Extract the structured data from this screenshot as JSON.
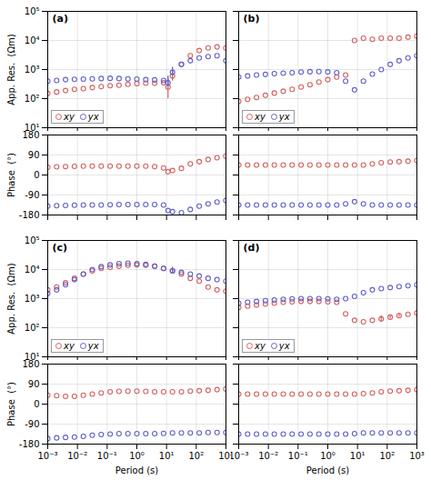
{
  "chart_data": [
    {
      "type": "scatter",
      "title": "(a)",
      "ylabel": "App. Res.  (Ωm)",
      "log": true,
      "grid": true,
      "legend": "lower left",
      "tick_labels": "y",
      "xlim": [
        0.001,
        1000
      ],
      "ylim": [
        10,
        100000
      ],
      "xticks": [
        0.001,
        0.01,
        0.1,
        1,
        10,
        100,
        1000
      ],
      "yticks": [
        {
          "value": 10,
          "label": "10¹"
        },
        {
          "value": 100,
          "label": "10²"
        },
        {
          "value": 1000,
          "label": "10³"
        },
        {
          "value": 10000,
          "label": "10⁴"
        },
        {
          "value": 100000,
          "label": "10⁵"
        }
      ],
      "x": [
        0.001,
        0.0019952623149688794,
        0.003981071705534973,
        0.007943282347242814,
        0.015848931924611134,
        0.03162277660168379,
        0.06309573444801933,
        0.12589254117941673,
        0.251188643150958,
        0.501187233627272,
        1,
        1.9952623149688795,
        3.9810717055349722,
        7.943282347242814,
        11.220184543019634,
        15.848931924611133,
        31.622776601683793,
        63.09573444801933,
        125.89254117941675,
        251.18864315095797,
        501.18723362727224,
        1000
      ],
      "series": [
        {
          "name": "xy",
          "color": "#d46060",
          "marker": "circle",
          "line_style": "none",
          "values": [
            150,
            170,
            190,
            210,
            220,
            240,
            260,
            280,
            290,
            310,
            330,
            340,
            340,
            350,
            250,
            600,
            1500,
            3000,
            4500,
            5500,
            6000,
            5500
          ],
          "error_bars": {
            "x": [
              11.220184543019634,
              15.848931924611133
            ],
            "lo": [
              100,
              400
            ],
            "hi": [
              500,
              900
            ]
          }
        },
        {
          "name": "yx",
          "color": "#6060cc",
          "marker": "circle",
          "line_style": "none",
          "values": [
            400,
            420,
            450,
            460,
            470,
            480,
            490,
            500,
            490,
            480,
            470,
            450,
            440,
            420,
            350,
            800,
            1500,
            2000,
            2500,
            2800,
            3000,
            2000
          ],
          "error_bars": {
            "x": [
              11.220184543019634,
              15.848931924611133
            ],
            "lo": [
              250,
              600
            ],
            "hi": [
              600,
              1200
            ]
          }
        }
      ]
    },
    {
      "type": "scatter",
      "ylabel": "Phase  (°)",
      "log": "x",
      "grid": true,
      "tick_labels": "y",
      "xlim": [
        0.001,
        1000
      ],
      "ylim": [
        -180,
        180
      ],
      "xticks": [
        0.001,
        0.01,
        0.1,
        1,
        10,
        100,
        1000
      ],
      "yticks": [
        -180,
        -90,
        0,
        90,
        180
      ],
      "x": [
        0.001,
        0.0019952623149688794,
        0.003981071705534973,
        0.007943282347242814,
        0.015848931924611134,
        0.03162277660168379,
        0.06309573444801933,
        0.12589254117941673,
        0.251188643150958,
        0.501187233627272,
        1,
        1.9952623149688795,
        3.9810717055349722,
        7.943282347242814,
        11.220184543019634,
        15.848931924611133,
        31.622776601683793,
        63.09573444801933,
        125.89254117941675,
        251.18864315095797,
        501.18723362727224,
        1000
      ],
      "series": [
        {
          "color": "#d46060",
          "marker": "circle",
          "line_style": "none",
          "values": [
            35,
            37,
            38,
            39,
            40,
            40,
            40,
            40,
            40,
            40,
            40,
            40,
            38,
            32,
            15,
            20,
            30,
            50,
            60,
            70,
            78,
            85
          ]
        },
        {
          "color": "#6060cc",
          "marker": "circle",
          "line_style": "none",
          "values": [
            -140,
            -138,
            -137,
            -136,
            -135,
            -135,
            -135,
            -134,
            -133,
            -133,
            -133,
            -133,
            -133,
            -135,
            -160,
            -165,
            -170,
            -155,
            -140,
            -130,
            -122,
            -115
          ]
        }
      ]
    },
    {
      "type": "scatter",
      "title": "(b)",
      "log": true,
      "grid": true,
      "legend": "lower left",
      "tick_labels": false,
      "xlim": [
        0.001,
        1000
      ],
      "ylim": [
        10,
        100000
      ],
      "xticks": [
        0.001,
        0.01,
        0.1,
        1,
        10,
        100,
        1000
      ],
      "yticks": [
        10,
        100,
        1000,
        10000,
        100000
      ],
      "x": [
        0.001,
        0.0019952623149688794,
        0.003981071705534973,
        0.007943282347242814,
        0.015848931924611134,
        0.03162277660168379,
        0.06309573444801933,
        0.12589254117941673,
        0.251188643150958,
        0.501187233627272,
        1,
        1.9952623149688795,
        3.9810717055349722,
        7.943282347242814,
        15.848931924611133,
        31.622776601683793,
        63.09573444801933,
        125.89254117941675,
        251.18864315095797,
        501.18723362727224,
        1000
      ],
      "series": [
        {
          "name": "xy",
          "color": "#d46060",
          "marker": "circle",
          "line_style": "none",
          "values": [
            80,
            95,
            110,
            130,
            155,
            180,
            210,
            250,
            300,
            370,
            450,
            550,
            650,
            10000,
            12000,
            11000,
            12000,
            12000,
            12000,
            13000,
            14000
          ]
        },
        {
          "name": "yx",
          "color": "#6060cc",
          "marker": "circle",
          "line_style": "none",
          "values": [
            550,
            600,
            650,
            680,
            720,
            750,
            780,
            820,
            840,
            850,
            830,
            780,
            400,
            200,
            400,
            700,
            1000,
            1500,
            2000,
            2500,
            3000
          ]
        }
      ]
    },
    {
      "type": "scatter",
      "log": "x",
      "grid": true,
      "tick_labels": false,
      "xlim": [
        0.001,
        1000
      ],
      "ylim": [
        -180,
        180
      ],
      "xticks": [
        0.001,
        0.01,
        0.1,
        1,
        10,
        100,
        1000
      ],
      "yticks": [
        -180,
        -90,
        0,
        90,
        180
      ],
      "x": [
        0.001,
        0.0019952623149688794,
        0.003981071705534973,
        0.007943282347242814,
        0.015848931924611134,
        0.03162277660168379,
        0.06309573444801933,
        0.12589254117941673,
        0.251188643150958,
        0.501187233627272,
        1,
        1.9952623149688795,
        3.9810717055349722,
        7.943282347242814,
        15.848931924611133,
        31.622776601683793,
        63.09573444801933,
        125.89254117941675,
        251.18864315095797,
        501.18723362727224,
        1000
      ],
      "series": [
        {
          "color": "#d46060",
          "marker": "circle",
          "line_style": "none",
          "values": [
            45,
            45,
            45,
            45,
            45,
            45,
            45,
            45,
            45,
            45,
            45,
            45,
            45,
            45,
            45,
            50,
            55,
            58,
            60,
            62,
            65
          ]
        },
        {
          "color": "#6060cc",
          "marker": "circle",
          "line_style": "none",
          "values": [
            -135,
            -135,
            -135,
            -135,
            -135,
            -135,
            -135,
            -135,
            -135,
            -135,
            -135,
            -135,
            -130,
            -120,
            -130,
            -135,
            -135,
            -135,
            -135,
            -135,
            -135
          ]
        }
      ]
    },
    {
      "type": "scatter",
      "title": "(c)",
      "ylabel": "App. Res.  (Ωm)",
      "log": true,
      "grid": true,
      "legend": "lower left",
      "tick_labels": "y",
      "xlim": [
        0.001,
        1000
      ],
      "ylim": [
        10,
        100000
      ],
      "xticks": [
        0.001,
        0.01,
        0.1,
        1,
        10,
        100,
        1000
      ],
      "yticks": [
        {
          "value": 10,
          "label": "10¹"
        },
        {
          "value": 100,
          "label": "10²"
        },
        {
          "value": 1000,
          "label": "10³"
        },
        {
          "value": 10000,
          "label": "10⁴"
        },
        {
          "value": 100000,
          "label": "10⁵"
        }
      ],
      "x": [
        0.001,
        0.0019952623149688794,
        0.003981071705534973,
        0.007943282347242814,
        0.015848931924611134,
        0.03162277660168379,
        0.06309573444801933,
        0.12589254117941673,
        0.251188643150958,
        0.501187233627272,
        1,
        1.9952623149688795,
        3.9810717055349722,
        7.943282347242814,
        15.848931924611133,
        31.622776601683793,
        63.09573444801933,
        125.89254117941675,
        251.18864315095797,
        501.18723362727224,
        1000
      ],
      "series": [
        {
          "name": "xy",
          "color": "#d46060",
          "marker": "circle",
          "line_style": "none",
          "values": [
            2000,
            2500,
            3500,
            5000,
            7000,
            9000,
            11000,
            12000,
            13000,
            14000,
            14500,
            14000,
            13000,
            11000,
            9000,
            7000,
            5000,
            4000,
            2500,
            2000,
            1800
          ],
          "error_bars": {
            "x": [
              15.848931924611133
            ],
            "lo": [
              7500
            ],
            "hi": [
              11000
            ]
          }
        },
        {
          "name": "yx",
          "color": "#6060cc",
          "marker": "circle",
          "line_style": "none",
          "values": [
            1500,
            2000,
            3000,
            4500,
            7000,
            10000,
            12500,
            14500,
            16000,
            16500,
            16000,
            15000,
            13000,
            11000,
            9000,
            8000,
            7000,
            6000,
            5000,
            4500,
            4000
          ],
          "error_bars": {
            "x": [
              15.848931924611133
            ],
            "lo": [
              7000
            ],
            "hi": [
              12000
            ]
          }
        }
      ]
    },
    {
      "type": "scatter",
      "xlabel": "Period (s)",
      "ylabel": "Phase  (°)",
      "log": "x",
      "grid": true,
      "xlim": [
        0.001,
        1000
      ],
      "ylim": [
        -180,
        180
      ],
      "xticks": [
        {
          "value": 0.001,
          "label": "10⁻³"
        },
        {
          "value": 0.01,
          "label": "10⁻²"
        },
        {
          "value": 0.1,
          "label": "10⁻¹"
        },
        {
          "value": 1,
          "label": "10⁰"
        },
        {
          "value": 10,
          "label": "10¹"
        },
        {
          "value": 100,
          "label": "10²"
        },
        {
          "value": 1000,
          "label": "10³"
        }
      ],
      "yticks": [
        -180,
        -90,
        0,
        90,
        180
      ],
      "x": [
        0.001,
        0.0019952623149688794,
        0.003981071705534973,
        0.007943282347242814,
        0.015848931924611134,
        0.03162277660168379,
        0.06309573444801933,
        0.12589254117941673,
        0.251188643150958,
        0.501187233627272,
        1,
        1.9952623149688795,
        3.9810717055349722,
        7.943282347242814,
        15.848931924611133,
        31.622776601683793,
        63.09573444801933,
        125.89254117941675,
        251.18864315095797,
        501.18723362727224,
        1000
      ],
      "series": [
        {
          "color": "#d46060",
          "marker": "circle",
          "line_style": "none",
          "values": [
            40,
            38,
            35,
            35,
            40,
            45,
            50,
            55,
            57,
            58,
            58,
            57,
            55,
            55,
            55,
            55,
            58,
            60,
            62,
            65,
            68
          ]
        },
        {
          "color": "#6060cc",
          "marker": "circle",
          "line_style": "none",
          "values": [
            -155,
            -152,
            -150,
            -148,
            -145,
            -140,
            -137,
            -135,
            -133,
            -133,
            -133,
            -133,
            -133,
            -132,
            -130,
            -130,
            -130,
            -130,
            -128,
            -128,
            -128
          ]
        }
      ]
    },
    {
      "type": "scatter",
      "title": "(d)",
      "log": true,
      "grid": true,
      "legend": "lower left",
      "tick_labels": false,
      "xlim": [
        0.001,
        1000
      ],
      "ylim": [
        10,
        100000
      ],
      "xticks": [
        0.001,
        0.01,
        0.1,
        1,
        10,
        100,
        1000
      ],
      "yticks": [
        10,
        100,
        1000,
        10000,
        100000
      ],
      "x": [
        0.001,
        0.0019952623149688794,
        0.003981071705534973,
        0.007943282347242814,
        0.015848931924611134,
        0.03162277660168379,
        0.06309573444801933,
        0.12589254117941673,
        0.251188643150958,
        0.501187233627272,
        1,
        1.9952623149688795,
        3.9810717055349722,
        7.943282347242814,
        15.848931924611133,
        31.622776601683793,
        63.09573444801933,
        125.89254117941675,
        251.18864315095797,
        501.18723362727224,
        1000
      ],
      "series": [
        {
          "name": "xy",
          "color": "#d46060",
          "marker": "circle",
          "line_style": "none",
          "values": [
            500,
            550,
            600,
            650,
            700,
            750,
            780,
            800,
            800,
            800,
            780,
            750,
            300,
            180,
            160,
            180,
            200,
            230,
            260,
            290,
            320
          ],
          "error_bars": {
            "x": [
              63.09573444801933,
              125.89254117941675,
              251.18864315095797
            ],
            "lo": [
              160,
              200,
              230
            ],
            "hi": [
              260,
              280,
              310
            ]
          }
        },
        {
          "name": "yx",
          "color": "#6060cc",
          "marker": "circle",
          "line_style": "none",
          "values": [
            700,
            750,
            800,
            850,
            900,
            950,
            980,
            1000,
            1000,
            1000,
            980,
            950,
            1000,
            1200,
            1600,
            2000,
            2200,
            2400,
            2600,
            2800,
            3000
          ]
        }
      ]
    },
    {
      "type": "scatter",
      "xlabel": "Period (s)",
      "log": "x",
      "grid": true,
      "tick_labels": "x",
      "xlim": [
        0.001,
        1000
      ],
      "ylim": [
        -180,
        180
      ],
      "xticks": [
        {
          "value": 0.001,
          "label": "10⁻³"
        },
        {
          "value": 0.01,
          "label": "10⁻²"
        },
        {
          "value": 0.1,
          "label": "10⁻¹"
        },
        {
          "value": 1,
          "label": "10⁰"
        },
        {
          "value": 10,
          "label": "10¹"
        },
        {
          "value": 100,
          "label": "10²"
        },
        {
          "value": 1000,
          "label": "10³"
        }
      ],
      "yticks": [
        -180,
        -90,
        0,
        90,
        180
      ],
      "x": [
        0.001,
        0.0019952623149688794,
        0.003981071705534973,
        0.007943282347242814,
        0.015848931924611134,
        0.03162277660168379,
        0.06309573444801933,
        0.12589254117941673,
        0.251188643150958,
        0.501187233627272,
        1,
        1.9952623149688795,
        3.9810717055349722,
        7.943282347242814,
        15.848931924611133,
        31.622776601683793,
        63.09573444801933,
        125.89254117941675,
        251.18864315095797,
        501.18723362727224,
        1000
      ],
      "series": [
        {
          "color": "#d46060",
          "marker": "circle",
          "line_style": "none",
          "values": [
            45,
            45,
            45,
            45,
            45,
            45,
            45,
            45,
            45,
            45,
            45,
            45,
            45,
            45,
            47,
            50,
            55,
            58,
            60,
            62,
            65
          ]
        },
        {
          "color": "#6060cc",
          "marker": "circle",
          "line_style": "none",
          "values": [
            -135,
            -135,
            -135,
            -135,
            -135,
            -135,
            -135,
            -135,
            -135,
            -135,
            -135,
            -135,
            -135,
            -133,
            -130,
            -130,
            -130,
            -130,
            -130,
            -130,
            -130
          ]
        }
      ]
    }
  ]
}
